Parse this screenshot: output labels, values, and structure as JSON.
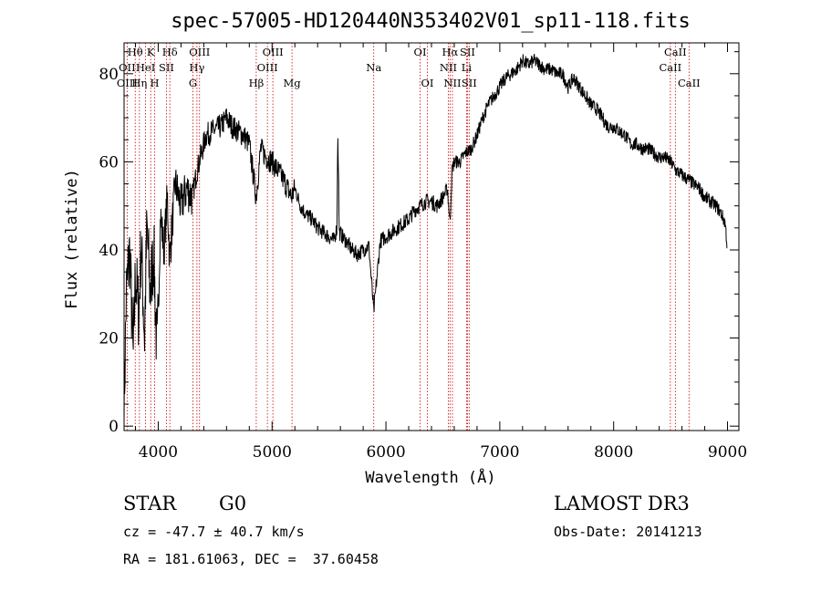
{
  "chart_data": {
    "type": "line",
    "title": "spec-57005-HD120440N353402V01_sp11-118.fits",
    "xlabel": "Wavelength (Å)",
    "ylabel": "Flux (relative)",
    "xlim": [
      3700,
      9100
    ],
    "ylim": [
      -1,
      87
    ],
    "x_ticks": [
      4000,
      5000,
      6000,
      7000,
      8000,
      9000
    ],
    "y_ticks": [
      0,
      20,
      40,
      60,
      80
    ],
    "grid": false,
    "series": [
      {
        "x": [
          3700,
          3720,
          3750,
          3780,
          3800,
          3830,
          3850,
          3880,
          3900,
          3930,
          3960,
          3990,
          4020,
          4050,
          4080,
          4100,
          4150,
          4200,
          4250,
          4300,
          4340,
          4380,
          4420,
          4480,
          4550,
          4600,
          4650,
          4700,
          4750,
          4800,
          4860,
          4900,
          4950,
          5000,
          5050,
          5100,
          5170,
          5200,
          5250,
          5300,
          5350,
          5400,
          5450,
          5500,
          5540,
          5570,
          5577,
          5590,
          5650,
          5700,
          5750,
          5800,
          5850,
          5893,
          5950,
          6000,
          6050,
          6100,
          6150,
          6200,
          6250,
          6300,
          6350,
          6400,
          6450,
          6500,
          6540,
          6563,
          6580,
          6600,
          6650,
          6700,
          6750,
          6800,
          6850,
          6900,
          6950,
          7000,
          7050,
          7100,
          7150,
          7200,
          7250,
          7300,
          7350,
          7400,
          7450,
          7500,
          7550,
          7600,
          7650,
          7700,
          7750,
          7800,
          7850,
          7900,
          7950,
          8000,
          8050,
          8100,
          8150,
          8200,
          8250,
          8300,
          8350,
          8400,
          8450,
          8500,
          8550,
          8600,
          8650,
          8700,
          8750,
          8800,
          8850,
          8900,
          8950,
          8980,
          9000
        ],
        "y": [
          3,
          30,
          40,
          15,
          35,
          25,
          42,
          20,
          45,
          30,
          40,
          15,
          48,
          40,
          52,
          38,
          55,
          50,
          54,
          52,
          58,
          62,
          66,
          67,
          68,
          70,
          68,
          67,
          66,
          64,
          52,
          63,
          61,
          60,
          58,
          56,
          52,
          54,
          50,
          48,
          47,
          45,
          44,
          43,
          42,
          45,
          68,
          44,
          42,
          40,
          39,
          40,
          41,
          26,
          42,
          43,
          44,
          45,
          46,
          47,
          49,
          50,
          51,
          51,
          50,
          52,
          54,
          46,
          58,
          60,
          60,
          62,
          63,
          66,
          70,
          73,
          75,
          77,
          79,
          80,
          81,
          83,
          82,
          83,
          82,
          81,
          81,
          80,
          80,
          77,
          79,
          77,
          75,
          73,
          72,
          70,
          68,
          68,
          67,
          66,
          64,
          64,
          63,
          63,
          62,
          61,
          61,
          60,
          58,
          57,
          56,
          55,
          54,
          52,
          51,
          50,
          48,
          46,
          40
        ]
      }
    ],
    "spectral_lines": [
      {
        "label": "Hθ",
        "x": 3798,
        "row": 0
      },
      {
        "label": "OII",
        "x": 3727,
        "row": 1
      },
      {
        "label": "OIII",
        "x": 3727,
        "row": 2
      },
      {
        "label": "K",
        "x": 3934,
        "row": 0
      },
      {
        "label": "HeI",
        "x": 3889,
        "row": 1
      },
      {
        "label": "Hη",
        "x": 3835,
        "row": 2
      },
      {
        "label": "Hδ",
        "x": 4102,
        "row": 0
      },
      {
        "label": "SII",
        "x": 4072,
        "row": 1
      },
      {
        "label": "H",
        "x": 3969,
        "row": 2
      },
      {
        "label": "OIII",
        "x": 4363,
        "row": 0
      },
      {
        "label": "Hγ",
        "x": 4340,
        "row": 1
      },
      {
        "label": "G",
        "x": 4305,
        "row": 2
      },
      {
        "label": "Hβ",
        "x": 4861,
        "row": 2
      },
      {
        "label": "OIII",
        "x": 5007,
        "row": 0
      },
      {
        "label": "OIII",
        "x": 4959,
        "row": 1
      },
      {
        "label": "Mg",
        "x": 5175,
        "row": 2
      },
      {
        "label": "Na",
        "x": 5893,
        "row": 1
      },
      {
        "label": "OI",
        "x": 6300,
        "row": 0
      },
      {
        "label": "OI",
        "x": 6364,
        "row": 2
      },
      {
        "label": "Hα",
        "x": 6563,
        "row": 0
      },
      {
        "label": "SII",
        "x": 6716,
        "row": 0
      },
      {
        "label": "NII",
        "x": 6548,
        "row": 1
      },
      {
        "label": "Li",
        "x": 6708,
        "row": 1
      },
      {
        "label": "NII",
        "x": 6584,
        "row": 2
      },
      {
        "label": "SII",
        "x": 6731,
        "row": 2
      },
      {
        "label": "CaII",
        "x": 8542,
        "row": 0
      },
      {
        "label": "CaII",
        "x": 8498,
        "row": 1
      },
      {
        "label": "CaII",
        "x": 8662,
        "row": 2
      }
    ]
  },
  "info": {
    "object_class": "STAR",
    "subclass": "G0",
    "survey": "LAMOST DR3",
    "cz": "cz = -47.7 ± 40.7 km/s",
    "obs_date": "Obs-Date: 20141213",
    "coords": "RA = 181.61063, DEC =  37.60458"
  },
  "colors": {
    "spectrum": "#000000",
    "line_markers": "#cc0000"
  }
}
